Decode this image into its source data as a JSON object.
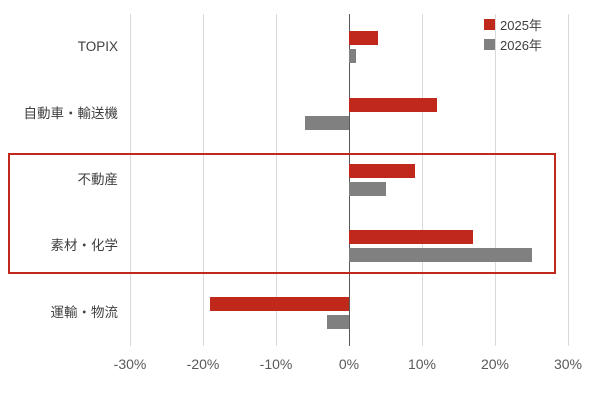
{
  "chart_data": {
    "type": "bar",
    "orientation": "horizontal",
    "title": "",
    "xlabel": "",
    "ylabel": "",
    "categories": [
      "TOPIX",
      "自動車・輸送機",
      "不動産",
      "素材・化学",
      "運輸・物流"
    ],
    "series": [
      {
        "name": "2025年",
        "color": "#c0281c",
        "values": [
          4,
          12,
          9,
          17,
          -19
        ]
      },
      {
        "name": "2026年",
        "color": "#808080",
        "values": [
          1,
          -6,
          5,
          25,
          -3
        ]
      }
    ],
    "xlim": [
      -30,
      30
    ],
    "tick_step": 10,
    "tick_labels": [
      "-30%",
      "-20%",
      "-10%",
      "0%",
      "10%",
      "20%",
      "30%"
    ],
    "grid": true,
    "legend_position": "top-right",
    "highlight_categories": [
      "不動産",
      "素材・化学"
    ],
    "highlight_color": "#c0281c"
  }
}
